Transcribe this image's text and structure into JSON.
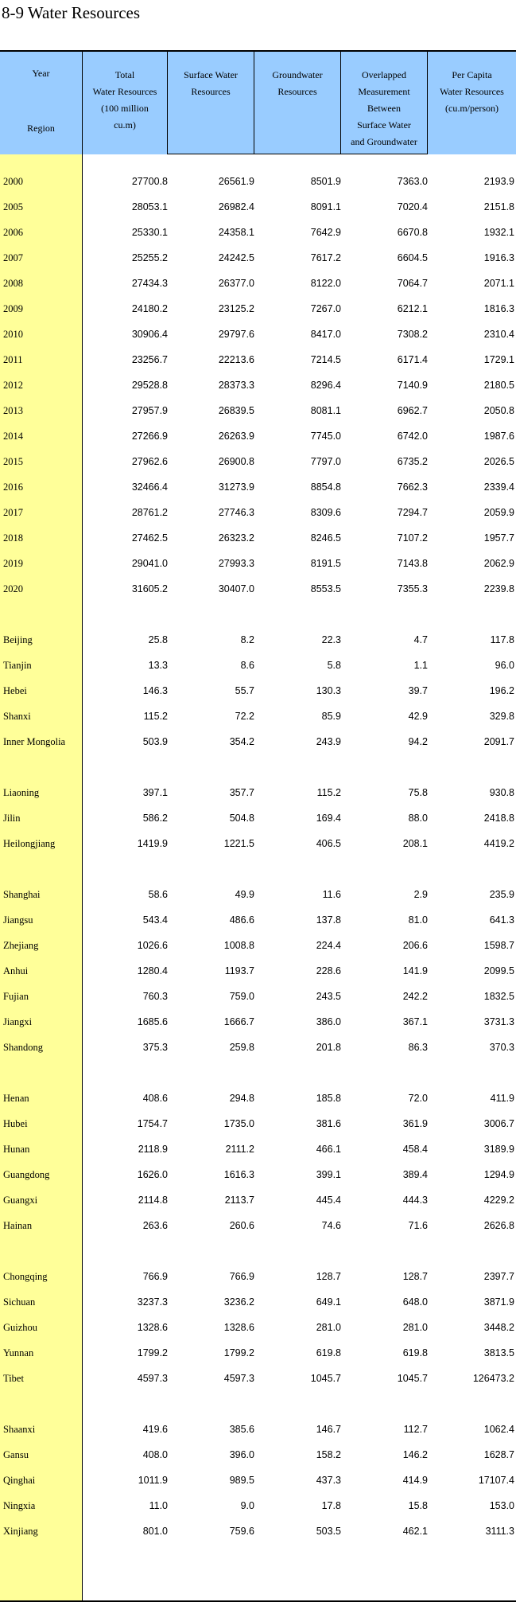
{
  "title": "8-9  Water Resources",
  "header": {
    "stub_top": "Year",
    "stub_bottom": "Region",
    "col1": [
      "Total",
      "Water Resources",
      "(100 million",
      "cu.m)"
    ],
    "col2": [
      "Surface Water",
      "Resources"
    ],
    "col3": [
      "Groundwater",
      "Resources"
    ],
    "col4": [
      "Overlapped",
      "Measurement",
      "Between",
      "Surface Water",
      "and Groundwater"
    ],
    "col5": [
      "Per Capita",
      "Water Resources",
      "(cu.m/person)"
    ]
  },
  "groups": [
    {
      "rows": [
        {
          "label": "2000",
          "v": [
            "27700.8",
            "26561.9",
            "8501.9",
            "7363.0",
            "2193.9"
          ]
        },
        {
          "label": "2005",
          "v": [
            "28053.1",
            "26982.4",
            "8091.1",
            "7020.4",
            "2151.8"
          ]
        },
        {
          "label": "2006",
          "v": [
            "25330.1",
            "24358.1",
            "7642.9",
            "6670.8",
            "1932.1"
          ]
        },
        {
          "label": "2007",
          "v": [
            "25255.2",
            "24242.5",
            "7617.2",
            "6604.5",
            "1916.3"
          ]
        },
        {
          "label": "2008",
          "v": [
            "27434.3",
            "26377.0",
            "8122.0",
            "7064.7",
            "2071.1"
          ]
        },
        {
          "label": "2009",
          "v": [
            "24180.2",
            "23125.2",
            "7267.0",
            "6212.1",
            "1816.3"
          ]
        },
        {
          "label": "2010",
          "v": [
            "30906.4",
            "29797.6",
            "8417.0",
            "7308.2",
            "2310.4"
          ]
        },
        {
          "label": "2011",
          "v": [
            "23256.7",
            "22213.6",
            "7214.5",
            "6171.4",
            "1729.1"
          ]
        },
        {
          "label": "2012",
          "v": [
            "29528.8",
            "28373.3",
            "8296.4",
            "7140.9",
            "2180.5"
          ]
        },
        {
          "label": "2013",
          "v": [
            "27957.9",
            "26839.5",
            "8081.1",
            "6962.7",
            "2050.8"
          ]
        },
        {
          "label": "2014",
          "v": [
            "27266.9",
            "26263.9",
            "7745.0",
            "6742.0",
            "1987.6"
          ]
        },
        {
          "label": "2015",
          "v": [
            "27962.6",
            "26900.8",
            "7797.0",
            "6735.2",
            "2026.5"
          ]
        },
        {
          "label": "2016",
          "v": [
            "32466.4",
            "31273.9",
            "8854.8",
            "7662.3",
            "2339.4"
          ]
        },
        {
          "label": "2017",
          "v": [
            "28761.2",
            "27746.3",
            "8309.6",
            "7294.7",
            "2059.9"
          ]
        },
        {
          "label": "2018",
          "v": [
            "27462.5",
            "26323.2",
            "8246.5",
            "7107.2",
            "1957.7"
          ]
        },
        {
          "label": "2019",
          "v": [
            "29041.0",
            "27993.3",
            "8191.5",
            "7143.8",
            "2062.9"
          ]
        },
        {
          "label": "2020",
          "v": [
            "31605.2",
            "30407.0",
            "8553.5",
            "7355.3",
            "2239.8"
          ]
        }
      ]
    },
    {
      "rows": [
        {
          "label": "Beijing",
          "v": [
            "25.8",
            "8.2",
            "22.3",
            "4.7",
            "117.8"
          ]
        },
        {
          "label": "Tianjin",
          "v": [
            "13.3",
            "8.6",
            "5.8",
            "1.1",
            "96.0"
          ]
        },
        {
          "label": "Hebei",
          "v": [
            "146.3",
            "55.7",
            "130.3",
            "39.7",
            "196.2"
          ]
        },
        {
          "label": "Shanxi",
          "v": [
            "115.2",
            "72.2",
            "85.9",
            "42.9",
            "329.8"
          ]
        },
        {
          "label": "Inner Mongolia",
          "v": [
            "503.9",
            "354.2",
            "243.9",
            "94.2",
            "2091.7"
          ]
        }
      ]
    },
    {
      "rows": [
        {
          "label": "Liaoning",
          "v": [
            "397.1",
            "357.7",
            "115.2",
            "75.8",
            "930.8"
          ]
        },
        {
          "label": "Jilin",
          "v": [
            "586.2",
            "504.8",
            "169.4",
            "88.0",
            "2418.8"
          ]
        },
        {
          "label": "Heilongjiang",
          "v": [
            "1419.9",
            "1221.5",
            "406.5",
            "208.1",
            "4419.2"
          ]
        }
      ]
    },
    {
      "rows": [
        {
          "label": "Shanghai",
          "v": [
            "58.6",
            "49.9",
            "11.6",
            "2.9",
            "235.9"
          ]
        },
        {
          "label": "Jiangsu",
          "v": [
            "543.4",
            "486.6",
            "137.8",
            "81.0",
            "641.3"
          ]
        },
        {
          "label": "Zhejiang",
          "v": [
            "1026.6",
            "1008.8",
            "224.4",
            "206.6",
            "1598.7"
          ]
        },
        {
          "label": "Anhui",
          "v": [
            "1280.4",
            "1193.7",
            "228.6",
            "141.9",
            "2099.5"
          ]
        },
        {
          "label": "Fujian",
          "v": [
            "760.3",
            "759.0",
            "243.5",
            "242.2",
            "1832.5"
          ]
        },
        {
          "label": "Jiangxi",
          "v": [
            "1685.6",
            "1666.7",
            "386.0",
            "367.1",
            "3731.3"
          ]
        },
        {
          "label": "Shandong",
          "v": [
            "375.3",
            "259.8",
            "201.8",
            "86.3",
            "370.3"
          ]
        }
      ]
    },
    {
      "rows": [
        {
          "label": "Henan",
          "v": [
            "408.6",
            "294.8",
            "185.8",
            "72.0",
            "411.9"
          ]
        },
        {
          "label": "Hubei",
          "v": [
            "1754.7",
            "1735.0",
            "381.6",
            "361.9",
            "3006.7"
          ]
        },
        {
          "label": "Hunan",
          "v": [
            "2118.9",
            "2111.2",
            "466.1",
            "458.4",
            "3189.9"
          ]
        },
        {
          "label": "Guangdong",
          "v": [
            "1626.0",
            "1616.3",
            "399.1",
            "389.4",
            "1294.9"
          ]
        },
        {
          "label": "Guangxi",
          "v": [
            "2114.8",
            "2113.7",
            "445.4",
            "444.3",
            "4229.2"
          ]
        },
        {
          "label": "Hainan",
          "v": [
            "263.6",
            "260.6",
            "74.6",
            "71.6",
            "2626.8"
          ]
        }
      ]
    },
    {
      "rows": [
        {
          "label": "Chongqing",
          "v": [
            "766.9",
            "766.9",
            "128.7",
            "128.7",
            "2397.7"
          ]
        },
        {
          "label": "Sichuan",
          "v": [
            "3237.3",
            "3236.2",
            "649.1",
            "648.0",
            "3871.9"
          ]
        },
        {
          "label": "Guizhou",
          "v": [
            "1328.6",
            "1328.6",
            "281.0",
            "281.0",
            "3448.2"
          ]
        },
        {
          "label": "Yunnan",
          "v": [
            "1799.2",
            "1799.2",
            "619.8",
            "619.8",
            "3813.5"
          ]
        },
        {
          "label": "Tibet",
          "v": [
            "4597.3",
            "4597.3",
            "1045.7",
            "1045.7",
            "126473.2"
          ]
        }
      ]
    },
    {
      "rows": [
        {
          "label": "Shaanxi",
          "v": [
            "419.6",
            "385.6",
            "146.7",
            "112.7",
            "1062.4"
          ]
        },
        {
          "label": "Gansu",
          "v": [
            "408.0",
            "396.0",
            "158.2",
            "146.2",
            "1628.7"
          ]
        },
        {
          "label": "Qinghai",
          "v": [
            "1011.9",
            "989.5",
            "437.3",
            "414.9",
            "17107.4"
          ]
        },
        {
          "label": "Ningxia",
          "v": [
            "11.0",
            "9.0",
            "17.8",
            "15.8",
            "153.0"
          ]
        },
        {
          "label": "Xinjiang",
          "v": [
            "801.0",
            "759.6",
            "503.5",
            "462.1",
            "3111.3"
          ]
        }
      ]
    }
  ]
}
